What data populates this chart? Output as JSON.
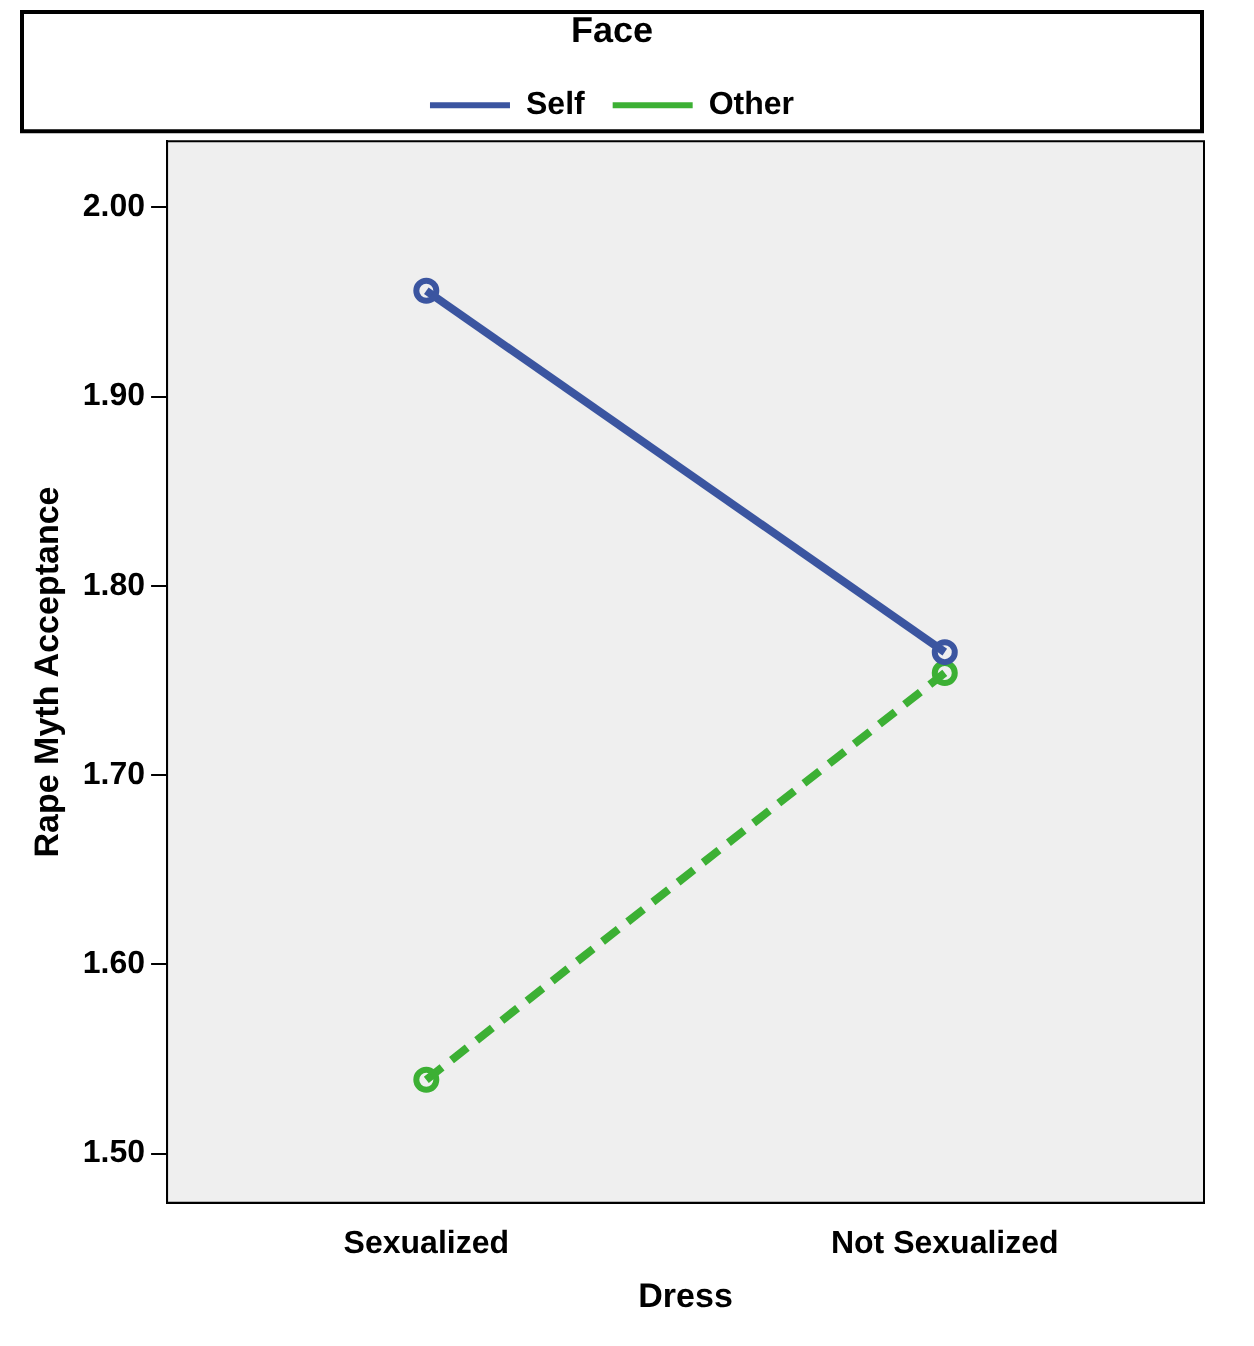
{
  "chart_data": {
    "type": "line",
    "xlabel": "Dress",
    "ylabel": "Rape Myth Acceptance",
    "legend_title": "Face",
    "legend": "top",
    "marker": "circle",
    "categories": [
      "Sexualized",
      "Not Sexualized"
    ],
    "series": [
      {
        "name": "Self",
        "color": "#3b55a0",
        "line_style": "solid",
        "values": [
          1.956,
          1.765
        ]
      },
      {
        "name": "Other",
        "color": "#3cb034",
        "line_style": "dashed",
        "values": [
          1.539,
          1.754
        ]
      }
    ],
    "ylim": [
      1.474,
      2.035
    ],
    "yticks": [
      {
        "value": 1.5,
        "label": "1.50"
      },
      {
        "value": 1.6,
        "label": "1.60"
      },
      {
        "value": 1.7,
        "label": "1.70"
      },
      {
        "value": 1.8,
        "label": "1.80"
      },
      {
        "value": 1.9,
        "label": "1.90"
      },
      {
        "value": 2.0,
        "label": "2.00"
      }
    ],
    "grid": false
  }
}
